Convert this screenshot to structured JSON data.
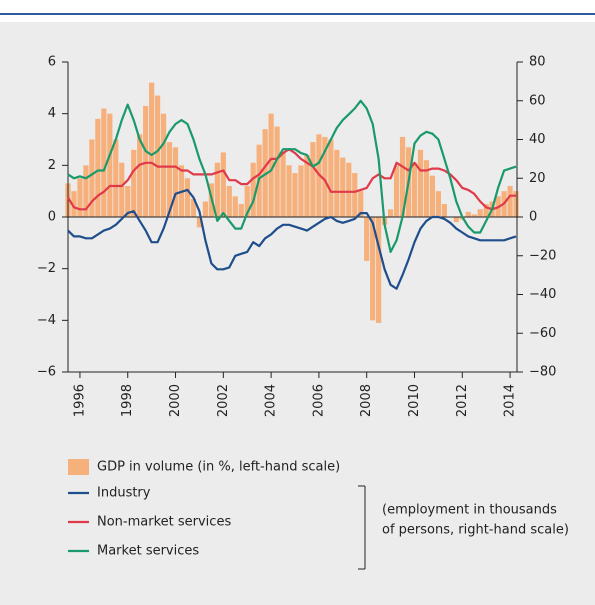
{
  "chart_data": {
    "type": "combo",
    "x": [
      1995.5,
      1995.75,
      1996,
      1996.25,
      1996.5,
      1996.75,
      1997,
      1997.25,
      1997.5,
      1997.75,
      1998,
      1998.25,
      1998.5,
      1998.75,
      1999,
      1999.25,
      1999.5,
      1999.75,
      2000,
      2000.25,
      2000.5,
      2000.75,
      2001,
      2001.25,
      2001.5,
      2001.75,
      2002,
      2002.25,
      2002.5,
      2002.75,
      2003,
      2003.25,
      2003.5,
      2003.75,
      2004,
      2004.25,
      2004.5,
      2004.75,
      2005,
      2005.25,
      2005.5,
      2005.75,
      2006,
      2006.25,
      2006.5,
      2006.75,
      2007,
      2007.25,
      2007.5,
      2007.75,
      2008,
      2008.25,
      2008.5,
      2008.75,
      2009,
      2009.25,
      2009.5,
      2009.75,
      2010,
      2010.25,
      2010.5,
      2010.75,
      2011,
      2011.25,
      2011.5,
      2011.75,
      2012,
      2012.25,
      2012.5,
      2012.75,
      2013,
      2013.25,
      2013.5,
      2013.75,
      2014,
      2014.25
    ],
    "xlim": [
      1995.5,
      2014.29
    ],
    "xticks": [
      1996,
      1998,
      2000,
      2002,
      2004,
      2006,
      2008,
      2010,
      2012,
      2014
    ],
    "ylim": [
      -6,
      6
    ],
    "yticks": [
      {
        "value": -6,
        "label": "−6"
      },
      {
        "value": -4,
        "label": "−4"
      },
      {
        "value": -2,
        "label": "−2"
      },
      0,
      2,
      4,
      6
    ],
    "y2lim": [
      -80,
      80
    ],
    "y2ticks": [
      {
        "value": -80,
        "label": "−80"
      },
      {
        "value": -60,
        "label": "−60"
      },
      {
        "value": -40,
        "label": "−40"
      },
      {
        "value": -20,
        "label": "−20"
      },
      0,
      20,
      40,
      60,
      80
    ],
    "series": [
      {
        "name": "GDP in volume (in %, left-hand scale)",
        "type": "bar",
        "color": "#f6b07c",
        "values": [
          1.3,
          1.0,
          1.5,
          2.0,
          3.0,
          3.8,
          4.2,
          4.0,
          3.0,
          2.1,
          1.2,
          2.6,
          3.2,
          4.3,
          5.2,
          4.7,
          4.0,
          2.9,
          2.7,
          2.0,
          1.5,
          0.7,
          -0.4,
          0.6,
          1.3,
          2.1,
          2.5,
          1.2,
          0.8,
          0.5,
          1.2,
          2.1,
          2.8,
          3.4,
          4.0,
          3.5,
          2.5,
          2.0,
          1.7,
          2.0,
          2.4,
          2.9,
          3.2,
          3.1,
          3.0,
          2.6,
          2.3,
          2.1,
          1.7,
          1.0,
          -1.7,
          -4.0,
          -4.1,
          -0.3,
          0.3,
          2.0,
          3.1,
          2.7,
          2.1,
          2.6,
          2.2,
          1.6,
          1.0,
          0.5,
          0.0,
          -0.2,
          -0.1,
          0.2,
          0.1,
          0.3,
          0.5,
          0.6,
          0.8,
          1.0,
          1.2,
          1.0
        ]
      },
      {
        "name": "Industry",
        "type": "line",
        "axis": "y2",
        "color": "#1f4e8c",
        "values": [
          -7,
          -10,
          -10,
          -11,
          -11,
          -9,
          -7,
          -6,
          -4,
          -1,
          2,
          3,
          -2,
          -7,
          -13,
          -13,
          -6,
          3,
          12,
          13,
          14,
          10,
          3,
          -12,
          -24,
          -27,
          -27,
          -26,
          -20,
          -19,
          -18,
          -13,
          -15,
          -11,
          -9,
          -6,
          -4,
          -4,
          -5,
          -6,
          -7,
          -5,
          -3,
          -1,
          0,
          -2,
          -3,
          -2,
          -1,
          2,
          2,
          -3,
          -15,
          -27,
          -35,
          -37,
          -30,
          -22,
          -13,
          -6,
          -2,
          0,
          0,
          -1,
          -3,
          -6,
          -8,
          -10,
          -11,
          -12,
          -12,
          -12,
          -12,
          -12,
          -11,
          -10
        ]
      },
      {
        "name": "Non-market services",
        "type": "line",
        "axis": "y2",
        "color": "#e0394a",
        "values": [
          10,
          5,
          4,
          4,
          8,
          11,
          13,
          16,
          16,
          16,
          19,
          24,
          27,
          28,
          28,
          26,
          26,
          26,
          26,
          24,
          24,
          22,
          22,
          22,
          22,
          23,
          24,
          19,
          19,
          17,
          17,
          20,
          22,
          26,
          30,
          30,
          33,
          35,
          33,
          30,
          28,
          26,
          22,
          19,
          13,
          13,
          13,
          13,
          13,
          14,
          15,
          20,
          22,
          20,
          20,
          28,
          26,
          24,
          28,
          24,
          24,
          25,
          25,
          24,
          22,
          19,
          15,
          14,
          12,
          8,
          5,
          4,
          5,
          7,
          11,
          11
        ]
      },
      {
        "name": "Market services",
        "type": "line",
        "axis": "y2",
        "color": "#1a9a6a",
        "values": [
          22,
          20,
          21,
          20,
          22,
          24,
          24,
          32,
          40,
          50,
          58,
          50,
          40,
          34,
          32,
          34,
          38,
          44,
          48,
          50,
          48,
          40,
          30,
          22,
          10,
          -2,
          2,
          -2,
          -6,
          -6,
          2,
          8,
          20,
          22,
          24,
          30,
          35,
          35,
          35,
          33,
          32,
          26,
          28,
          34,
          40,
          46,
          50,
          53,
          56,
          60,
          56,
          48,
          30,
          -4,
          -18,
          -12,
          0,
          18,
          38,
          42,
          44,
          43,
          40,
          30,
          20,
          8,
          0,
          -5,
          -8,
          -8,
          -2,
          4,
          15,
          24,
          25,
          26
        ]
      }
    ],
    "annotation": [
      "(employment in thousands",
      "of persons, right-hand scale)"
    ]
  }
}
